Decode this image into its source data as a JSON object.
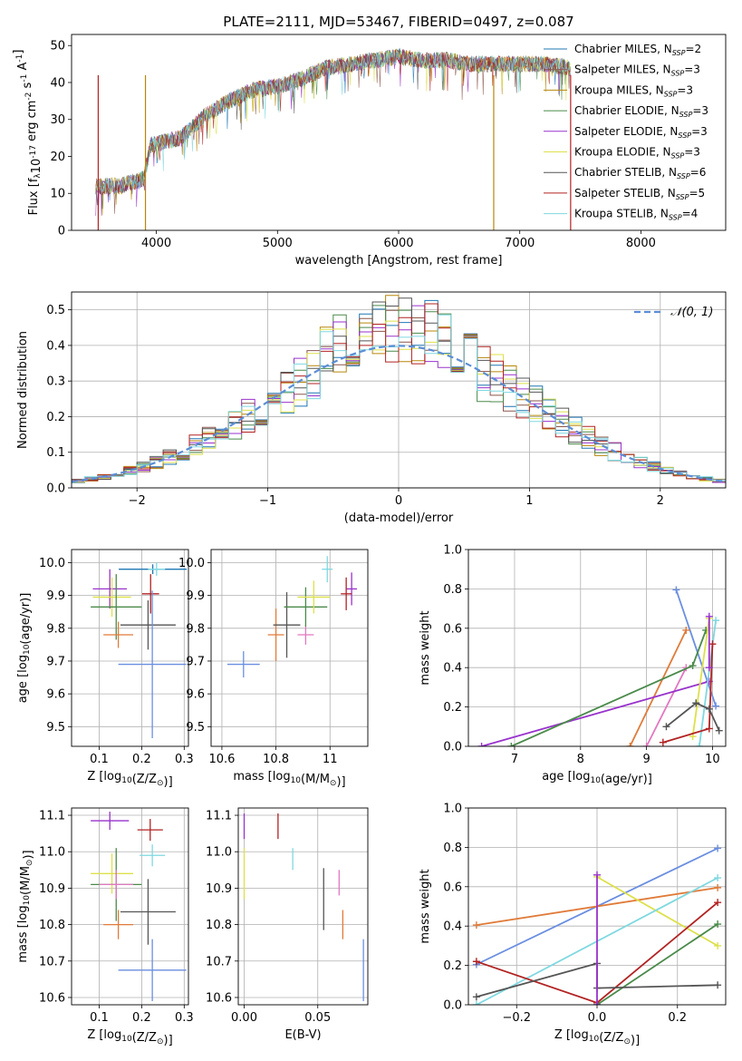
{
  "title": "PLATE=2111, MJD=53467, FIBERID=0497, z=0.087",
  "colors": {
    "chabrier_miles": "#1f77b4",
    "salpeter_miles": "#8c564b",
    "kroupa_miles": "#b8860b",
    "chabrier_elodie": "#4a8a4a",
    "salpeter_elodie": "#9932cc",
    "kroupa_elodie": "#dde04a",
    "chabrier_stelib": "#555555",
    "salpeter_stelib": "#b22222",
    "kroupa_stelib": "#7fd8e0",
    "gauss": "#5b8dd6",
    "orange": "#e07b39",
    "pink": "#e377c2",
    "blue": "#6a8ee0"
  },
  "chart_data": [
    {
      "id": "spectrum",
      "type": "line",
      "xlabel": "wavelength [Angstrom, rest frame]",
      "ylabel": "Flux [f$_\\lambda$10$^{-17}$ erg cm$^{-2}$ s$^{-1}$ A$^{-1}$]",
      "xlim": [
        3300,
        8700
      ],
      "ylim": [
        0,
        53
      ],
      "xticks": [
        4000,
        5000,
        6000,
        7000,
        8000
      ],
      "yticks": [
        0,
        10,
        20,
        30,
        40,
        50
      ],
      "legend_position": "right",
      "legend": [
        "Chabrier MILES, N_SSP=2",
        "Salpeter MILES, N_SSP=3",
        "Kroupa MILES, N_SSP=3",
        "Chabrier ELODIE, N_SSP=3",
        "Salpeter ELODIE, N_SSP=3",
        "Kroupa ELODIE, N_SSP=3",
        "Chabrier STELIB, N_SSP=6",
        "Salpeter STELIB, N_SSP=5",
        "Kroupa STELIB, N_SSP=4"
      ],
      "continuum": [
        [
          3500,
          12
        ],
        [
          3700,
          12
        ],
        [
          3900,
          14
        ],
        [
          3950,
          23
        ],
        [
          4200,
          25
        ],
        [
          4400,
          31
        ],
        [
          4600,
          35
        ],
        [
          4800,
          38
        ],
        [
          5000,
          39
        ],
        [
          5200,
          41
        ],
        [
          5400,
          44
        ],
        [
          5600,
          45
        ],
        [
          5800,
          46
        ],
        [
          6000,
          47
        ],
        [
          6200,
          46
        ],
        [
          6400,
          46
        ],
        [
          6600,
          45
        ],
        [
          6800,
          45
        ],
        [
          7000,
          45
        ],
        [
          7200,
          45
        ],
        [
          7400,
          44
        ]
      ]
    },
    {
      "id": "residuals",
      "type": "histogram",
      "xlabel": "(data-model)/error",
      "ylabel": "Normed distribution",
      "xlim": [
        -2.5,
        2.5
      ],
      "ylim": [
        0,
        0.55
      ],
      "xticks": [
        -2,
        -1,
        0,
        1,
        2
      ],
      "yticks": [
        0.0,
        0.1,
        0.2,
        0.3,
        0.4,
        0.5
      ],
      "legend": [
        "𝒩(0, 1)"
      ],
      "legend_position": "top-right",
      "gauss_mean": 0,
      "gauss_sigma": 1
    },
    {
      "id": "age_vs_Z",
      "type": "errorbar",
      "xlabel": "Z [log$_{10}$(Z/Z$_\\odot$)]",
      "ylabel": "age  [log$_{10}$(age/yr)]",
      "xlim": [
        0.035,
        0.31
      ],
      "ylim": [
        9.44,
        10.04
      ],
      "xticks": [
        0.1,
        0.2,
        0.3
      ],
      "yticks": [
        9.5,
        9.6,
        9.7,
        9.8,
        9.9,
        10.0
      ],
      "points": [
        {
          "c": "chabrier_miles",
          "x": 0.226,
          "xe": 0.08,
          "y": 9.98,
          "ye": 0.015
        },
        {
          "c": "salpeter_stelib",
          "x": 0.221,
          "xe": 0.02,
          "y": 9.905,
          "ye": 0.06
        },
        {
          "c": "salpeter_elodie",
          "x": 0.125,
          "xe": 0.04,
          "y": 9.92,
          "ye": 0.06
        },
        {
          "c": "kroupa_elodie",
          "x": 0.13,
          "xe": 0.045,
          "y": 9.895,
          "ye": 0.06
        },
        {
          "c": "chabrier_elodie",
          "x": 0.14,
          "xe": 0.06,
          "y": 9.865,
          "ye": 0.1
        },
        {
          "c": "chabrier_stelib",
          "x": 0.215,
          "xe": 0.065,
          "y": 9.81,
          "ye": 0.075
        },
        {
          "c": "orange",
          "x": 0.145,
          "xe": 0.035,
          "y": 9.78,
          "ye": 0.04
        },
        {
          "c": "blue",
          "x": 0.225,
          "xe": 0.08,
          "y": 9.69,
          "ye": 0.225
        },
        {
          "c": "kroupa_stelib",
          "x": 0.235,
          "xe": 0.02,
          "y": 9.98,
          "ye": 0.02
        }
      ]
    },
    {
      "id": "age_vs_mass",
      "type": "errorbar",
      "xlabel": "mass [log$_{10}$(M/M$_\\odot$)]",
      "ylabel": "",
      "xlim": [
        10.56,
        11.14
      ],
      "ylim": [
        9.44,
        10.04
      ],
      "xticks": [
        10.6,
        10.8,
        11.0
      ],
      "yticks": [
        9.5,
        9.6,
        9.7,
        9.8,
        9.9,
        10.0
      ],
      "points": [
        {
          "c": "blue",
          "x": 10.68,
          "xe": 0.06,
          "y": 9.69,
          "ye": 0.04
        },
        {
          "c": "orange",
          "x": 10.8,
          "xe": 0.03,
          "y": 9.78,
          "ye": 0.08
        },
        {
          "c": "chabrier_stelib",
          "x": 10.84,
          "xe": 0.05,
          "y": 9.81,
          "ye": 0.1
        },
        {
          "c": "pink",
          "x": 10.91,
          "xe": 0.03,
          "y": 9.78,
          "ye": 0.03
        },
        {
          "c": "chabrier_elodie",
          "x": 10.91,
          "xe": 0.08,
          "y": 9.865,
          "ye": 0.06
        },
        {
          "c": "kroupa_elodie",
          "x": 10.94,
          "xe": 0.06,
          "y": 9.895,
          "ye": 0.05
        },
        {
          "c": "kroupa_stelib",
          "x": 10.99,
          "xe": 0.02,
          "y": 9.98,
          "ye": 0.04
        },
        {
          "c": "salpeter_elodie",
          "x": 11.08,
          "xe": 0.02,
          "y": 9.92,
          "ye": 0.05
        },
        {
          "c": "salpeter_stelib",
          "x": 11.06,
          "xe": 0.02,
          "y": 9.905,
          "ye": 0.05
        }
      ]
    },
    {
      "id": "weight_vs_age",
      "type": "line",
      "xlabel": "age  [log$_{10}$(age/yr)]",
      "ylabel": "mass weight",
      "xlim": [
        6.3,
        10.2
      ],
      "ylim": [
        0.0,
        1.0
      ],
      "xticks": [
        7,
        8,
        9,
        10
      ],
      "yticks": [
        0.0,
        0.2,
        0.4,
        0.6,
        0.8,
        1.0
      ],
      "series": [
        {
          "c": "blue",
          "x": [
            9.45,
            10.05
          ],
          "y": [
            0.795,
            0.205
          ]
        },
        {
          "c": "orange",
          "x": [
            8.75,
            9.6
          ],
          "y": [
            0.0,
            0.59
          ]
        },
        {
          "c": "pink",
          "x": [
            9.0,
            9.6
          ],
          "y": [
            0.0,
            0.4
          ]
        },
        {
          "c": "salpeter_elodie",
          "x": [
            6.5,
            9.95
          ],
          "y": [
            0.0,
            0.33
          ]
        },
        {
          "c": "chabrier_elodie",
          "x": [
            6.95,
            9.7,
            9.9
          ],
          "y": [
            0.0,
            0.41,
            0.59
          ]
        },
        {
          "c": "kroupa_elodie",
          "x": [
            9.7,
            9.95
          ],
          "y": [
            0.05,
            0.65
          ]
        },
        {
          "c": "kroupa_stelib",
          "x": [
            9.8,
            10.05
          ],
          "y": [
            0.0,
            0.64
          ]
        },
        {
          "c": "salpeter_stelib",
          "x": [
            9.25,
            9.95,
            10.0
          ],
          "y": [
            0.02,
            0.09,
            0.52
          ]
        },
        {
          "c": "chabrier_stelib",
          "x": [
            9.3,
            9.75,
            9.95,
            10.1
          ],
          "y": [
            0.1,
            0.22,
            0.19,
            0.08
          ]
        },
        {
          "c": "salpeter_elodie",
          "x": [
            9.95,
            9.95
          ],
          "y": [
            0.66,
            0.4
          ]
        }
      ]
    },
    {
      "id": "mass_vs_Z",
      "type": "errorbar",
      "xlabel": "Z [log$_{10}$(Z/Z$_\\odot$)]",
      "ylabel": "mass [log$_{10}$(M/M$_\\odot$)]",
      "xlim": [
        0.035,
        0.31
      ],
      "ylim": [
        10.58,
        11.12
      ],
      "xticks": [
        0.1,
        0.2,
        0.3
      ],
      "yticks": [
        10.6,
        10.7,
        10.8,
        10.9,
        11.0,
        11.1
      ],
      "points": [
        {
          "c": "salpeter_elodie",
          "x": 0.125,
          "xe": 0.045,
          "y": 11.085,
          "ye": 0.025
        },
        {
          "c": "salpeter_stelib",
          "x": 0.22,
          "xe": 0.03,
          "y": 11.06,
          "ye": 0.03
        },
        {
          "c": "kroupa_stelib",
          "x": 0.225,
          "xe": 0.03,
          "y": 10.99,
          "ye": 0.03
        },
        {
          "c": "kroupa_elodie",
          "x": 0.13,
          "xe": 0.05,
          "y": 10.94,
          "ye": 0.055
        },
        {
          "c": "chabrier_elodie",
          "x": 0.14,
          "xe": 0.06,
          "y": 10.91,
          "ye": 0.1
        },
        {
          "c": "pink",
          "x": 0.14,
          "xe": 0.04,
          "y": 10.91,
          "ye": 0.04
        },
        {
          "c": "chabrier_stelib",
          "x": 0.215,
          "xe": 0.065,
          "y": 10.835,
          "ye": 0.09
        },
        {
          "c": "orange",
          "x": 0.145,
          "xe": 0.035,
          "y": 10.8,
          "ye": 0.04
        },
        {
          "c": "blue",
          "x": 0.225,
          "xe": 0.08,
          "y": 10.675,
          "ye": 0.085
        }
      ]
    },
    {
      "id": "mass_vs_ebv",
      "type": "errorbar",
      "xlabel": "E(B-V)",
      "ylabel": "",
      "xlim": [
        -0.004,
        0.084
      ],
      "ylim": [
        10.58,
        11.12
      ],
      "xticks": [
        0.0,
        0.05
      ],
      "yticks": [
        10.6,
        10.7,
        10.8,
        10.9,
        11.0,
        11.1
      ],
      "points": [
        {
          "c": "salpeter_elodie",
          "x": 0.0,
          "xe": 0,
          "y": 11.07,
          "ye": 0.035
        },
        {
          "c": "kroupa_elodie",
          "x": 0.0,
          "xe": 0,
          "y": 10.94,
          "ye": 0.07
        },
        {
          "c": "salpeter_stelib",
          "x": 0.023,
          "xe": 0,
          "y": 11.07,
          "ye": 0.035
        },
        {
          "c": "kroupa_stelib",
          "x": 0.033,
          "xe": 0,
          "y": 10.98,
          "ye": 0.03
        },
        {
          "c": "chabrier_stelib",
          "x": 0.054,
          "xe": 0,
          "y": 10.87,
          "ye": 0.085
        },
        {
          "c": "pink",
          "x": 0.0645,
          "xe": 0,
          "y": 10.915,
          "ye": 0.035
        },
        {
          "c": "orange",
          "x": 0.067,
          "xe": 0,
          "y": 10.8,
          "ye": 0.04
        },
        {
          "c": "blue",
          "x": 0.081,
          "xe": 0,
          "y": 10.675,
          "ye": 0.085
        }
      ]
    },
    {
      "id": "weight_vs_Z",
      "type": "line",
      "xlabel": "Z [log$_{10}$(Z/Z$_\\odot$)]",
      "ylabel": "mass weight",
      "xlim": [
        -0.32,
        0.32
      ],
      "ylim": [
        0.0,
        1.0
      ],
      "xticks": [
        -0.2,
        0.0,
        0.2
      ],
      "yticks": [
        0.0,
        0.2,
        0.4,
        0.6,
        0.8,
        1.0
      ],
      "series": [
        {
          "c": "blue",
          "x": [
            -0.3,
            0.3
          ],
          "y": [
            0.205,
            0.795
          ]
        },
        {
          "c": "orange",
          "x": [
            -0.3,
            0.3
          ],
          "y": [
            0.405,
            0.595
          ]
        },
        {
          "c": "kroupa_elodie",
          "x": [
            0.0,
            0.3
          ],
          "y": [
            0.65,
            0.3
          ]
        },
        {
          "c": "kroupa_stelib",
          "x": [
            -0.3,
            0.3
          ],
          "y": [
            0.0,
            0.645
          ]
        },
        {
          "c": "salpeter_stelib",
          "x": [
            -0.3,
            0.0,
            0.3
          ],
          "y": [
            0.22,
            0.01,
            0.52
          ]
        },
        {
          "c": "chabrier_elodie",
          "x": [
            0.0,
            0.3
          ],
          "y": [
            0.0,
            0.41
          ]
        },
        {
          "c": "chabrier_stelib",
          "x": [
            -0.3,
            0.0,
            0.0,
            0.3
          ],
          "y": [
            0.04,
            0.21,
            0.085,
            0.1
          ]
        },
        {
          "c": "salpeter_elodie",
          "x": [
            0.0,
            0.0
          ],
          "y": [
            0.66,
            0.0
          ]
        }
      ]
    }
  ]
}
